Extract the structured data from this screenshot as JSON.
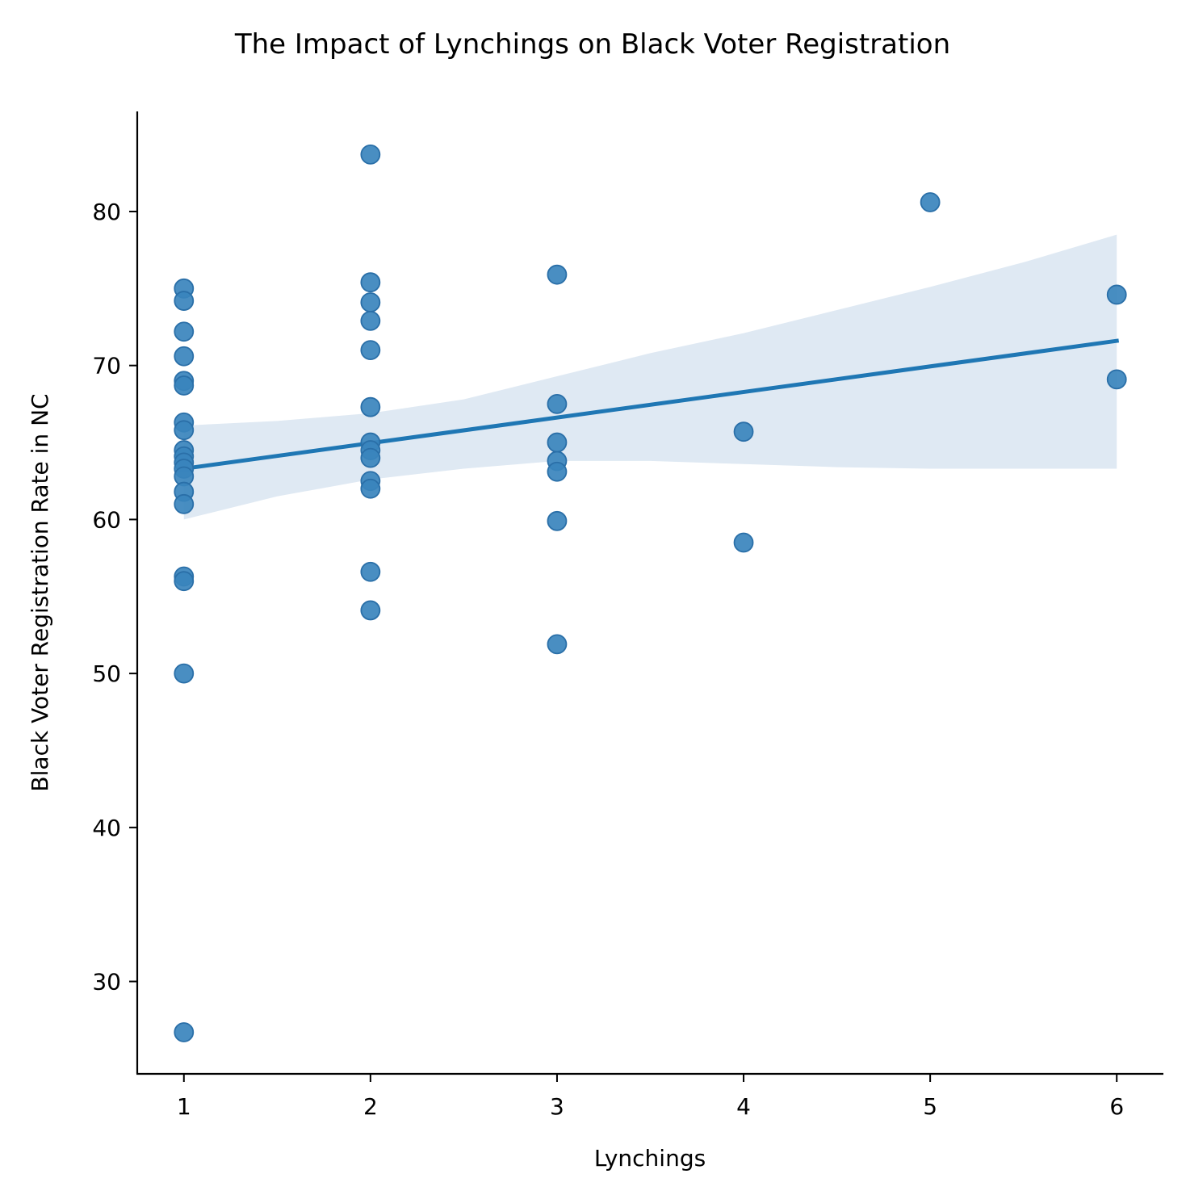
{
  "chart_data": {
    "type": "scatter",
    "title": "The Impact of Lynchings on Black Voter Registration",
    "xlabel": "Lynchings",
    "ylabel": "Black Voter Registration Rate in NC",
    "xlim": [
      0.75,
      6.25
    ],
    "ylim": [
      24,
      86.5
    ],
    "xticks": [
      1,
      2,
      3,
      4,
      5,
      6
    ],
    "xtick_labels": [
      "1",
      "2",
      "3",
      "4",
      "5",
      "6"
    ],
    "yticks": [
      30,
      40,
      50,
      60,
      70,
      80
    ],
    "ytick_labels": [
      "30",
      "40",
      "50",
      "60",
      "70",
      "80"
    ],
    "grid": false,
    "point_color": "#3a84bd",
    "line_color": "#1f77b4",
    "band_color": "#dfe9f3",
    "points": [
      {
        "x": 1,
        "y": 75.0
      },
      {
        "x": 1,
        "y": 74.2
      },
      {
        "x": 1,
        "y": 72.2
      },
      {
        "x": 1,
        "y": 70.6
      },
      {
        "x": 1,
        "y": 69.0
      },
      {
        "x": 1,
        "y": 68.7
      },
      {
        "x": 1,
        "y": 66.3
      },
      {
        "x": 1,
        "y": 65.8
      },
      {
        "x": 1,
        "y": 64.5
      },
      {
        "x": 1,
        "y": 64.1
      },
      {
        "x": 1,
        "y": 63.7
      },
      {
        "x": 1,
        "y": 63.3
      },
      {
        "x": 1,
        "y": 62.8
      },
      {
        "x": 1,
        "y": 61.8
      },
      {
        "x": 1,
        "y": 61.0
      },
      {
        "x": 1,
        "y": 56.3
      },
      {
        "x": 1,
        "y": 56.0
      },
      {
        "x": 1,
        "y": 50.0
      },
      {
        "x": 1,
        "y": 26.7
      },
      {
        "x": 2,
        "y": 83.7
      },
      {
        "x": 2,
        "y": 75.4
      },
      {
        "x": 2,
        "y": 74.1
      },
      {
        "x": 2,
        "y": 72.9
      },
      {
        "x": 2,
        "y": 71.0
      },
      {
        "x": 2,
        "y": 67.3
      },
      {
        "x": 2,
        "y": 65.0
      },
      {
        "x": 2,
        "y": 64.5
      },
      {
        "x": 2,
        "y": 64.0
      },
      {
        "x": 2,
        "y": 62.5
      },
      {
        "x": 2,
        "y": 62.0
      },
      {
        "x": 2,
        "y": 56.6
      },
      {
        "x": 2,
        "y": 54.1
      },
      {
        "x": 3,
        "y": 75.9
      },
      {
        "x": 3,
        "y": 67.5
      },
      {
        "x": 3,
        "y": 65.0
      },
      {
        "x": 3,
        "y": 63.8
      },
      {
        "x": 3,
        "y": 63.1
      },
      {
        "x": 3,
        "y": 59.9
      },
      {
        "x": 3,
        "y": 51.9
      },
      {
        "x": 4,
        "y": 65.7
      },
      {
        "x": 4,
        "y": 58.5
      },
      {
        "x": 5,
        "y": 80.6
      },
      {
        "x": 6,
        "y": 74.6
      },
      {
        "x": 6,
        "y": 69.1
      }
    ],
    "regression": {
      "x": [
        1,
        6
      ],
      "y": [
        63.3,
        71.6
      ]
    },
    "confidence_band": {
      "x": [
        1,
        1.5,
        2,
        2.5,
        3,
        3.5,
        4,
        4.5,
        5,
        5.5,
        6
      ],
      "upper": [
        66.1,
        66.4,
        66.9,
        67.8,
        69.3,
        70.8,
        72.1,
        73.6,
        75.1,
        76.7,
        78.5
      ],
      "lower": [
        60.0,
        61.5,
        62.6,
        63.3,
        63.8,
        63.8,
        63.6,
        63.4,
        63.3,
        63.3,
        63.3
      ]
    }
  }
}
